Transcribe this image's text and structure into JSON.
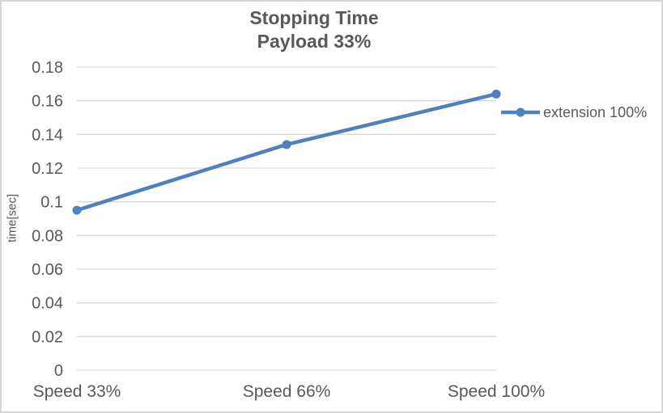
{
  "chart_data": {
    "type": "line",
    "title": "Stopping Time",
    "subtitle": "Payload 33%",
    "categories": [
      "Speed 33%",
      "Speed 66%",
      "Speed 100%"
    ],
    "series": [
      {
        "name": "extension 100%",
        "values": [
          0.095,
          0.134,
          0.164
        ]
      }
    ],
    "xlabel": "",
    "ylabel": "time[sec]",
    "ylim": [
      0,
      0.18
    ],
    "ytick_labels": [
      "0",
      "0.02",
      "0.04",
      "0.06",
      "0.08",
      "0.1",
      "0.12",
      "0.14",
      "0.16",
      "0.18"
    ],
    "grid": true,
    "legend_position": "right",
    "colors": {
      "series": "#4f81bd",
      "text": "#595959",
      "gridline": "#d9d9d9",
      "border": "#d6d6d6",
      "background": "#ffffff"
    }
  }
}
